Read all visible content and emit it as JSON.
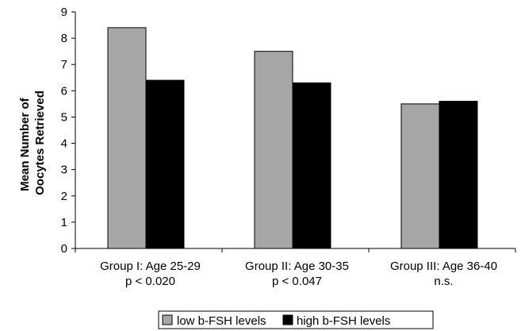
{
  "chart_data": {
    "type": "bar",
    "categories": [
      {
        "line1": "Group I: Age 25-29",
        "line2": "p < 0.020"
      },
      {
        "line1": "Group II: Age 30-35",
        "line2": "p < 0.047"
      },
      {
        "line1": "Group III: Age 36-40",
        "line2": "n.s."
      }
    ],
    "series": [
      {
        "name": "low b-FSH levels",
        "color": "#a6a6a6",
        "values": [
          8.4,
          7.5,
          5.5
        ]
      },
      {
        "name": "high b-FSH levels",
        "color": "#000000",
        "values": [
          6.4,
          6.3,
          5.6
        ]
      }
    ],
    "ylabel_lines": [
      "Mean Number of",
      "Oocytes Retrieved"
    ],
    "xlabel": "",
    "ylim": [
      0,
      9
    ],
    "yticks": [
      "0",
      "1",
      "2",
      "3",
      "4",
      "5",
      "6",
      "7",
      "8",
      "9"
    ],
    "grid": false,
    "legend_position": "bottom"
  }
}
